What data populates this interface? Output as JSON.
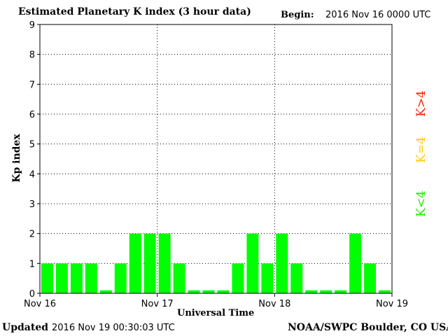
{
  "header": {
    "title": "Estimated Planetary K index (3 hour data)",
    "begin_label": "Begin:",
    "begin_value": "2016 Nov 16 0000 UTC"
  },
  "footer": {
    "updated_label": "Updated",
    "updated_value": "2016 Nov 19 00:30:03 UTC",
    "credit": "NOAA/SWPC Boulder, CO USA"
  },
  "legend": {
    "high": "K>4",
    "mid": "K=4",
    "low": "K<4"
  },
  "colors": {
    "bar": "#00ff00",
    "high": "#ff2000",
    "mid": "#ffcc00",
    "low": "#22ee00"
  },
  "chart_data": {
    "type": "bar",
    "title": "Estimated Planetary K index (3 hour data)",
    "xlabel": "Universal Time",
    "ylabel": "Kp index",
    "ylim": [
      0,
      9
    ],
    "yticks": [
      "0",
      "1",
      "2",
      "3",
      "4",
      "5",
      "6",
      "7",
      "8",
      "9"
    ],
    "xtick_labels": [
      "Nov 16",
      "Nov 17",
      "Nov 18",
      "Nov 19"
    ],
    "grid": true,
    "series": [
      {
        "values": [
          1,
          1,
          1,
          1,
          0.1,
          1,
          2,
          2,
          2,
          1,
          0.1,
          0.1,
          0.1,
          1,
          2,
          1,
          2,
          1,
          0.1,
          0.1,
          0.1,
          2,
          1,
          0.1
        ]
      }
    ]
  }
}
